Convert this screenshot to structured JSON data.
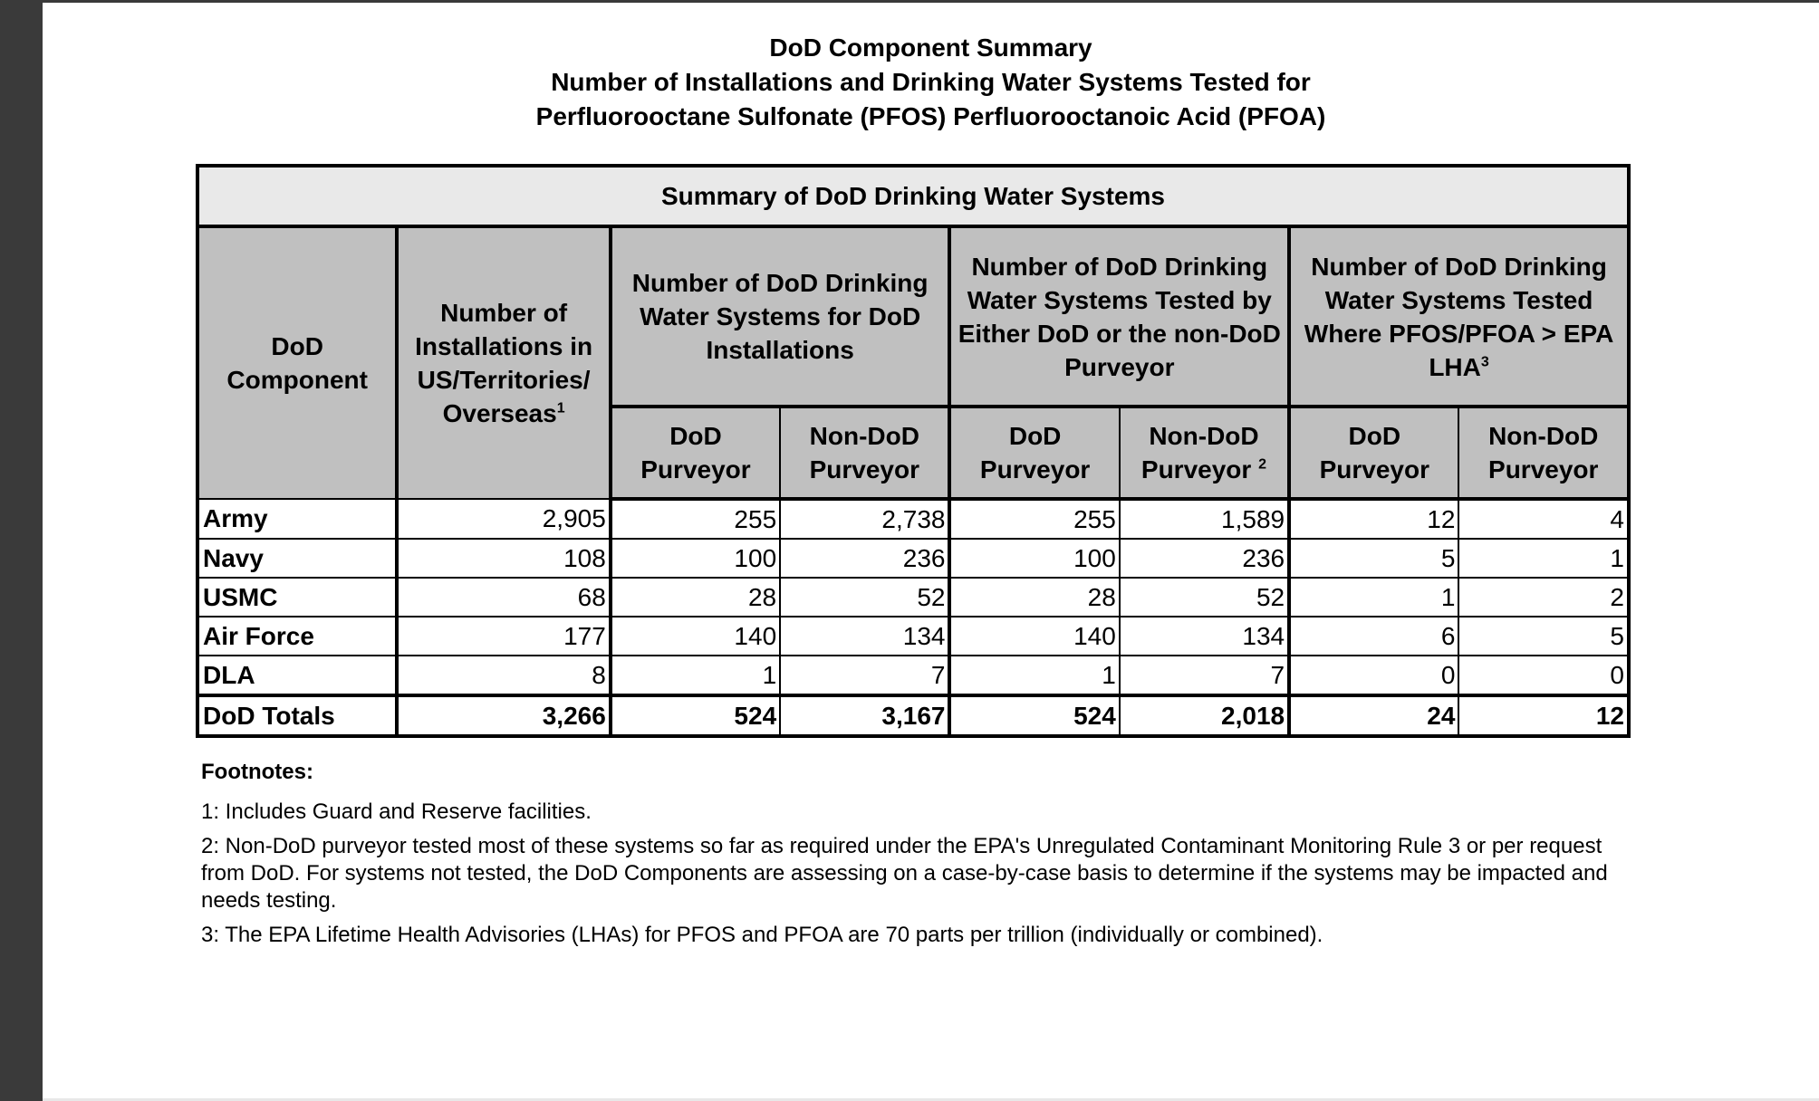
{
  "title": {
    "line1": "DoD Component Summary",
    "line2": "Number of Installations and Drinking Water Systems Tested for",
    "line3": "Perfluorooctane Sulfonate (PFOS) Perfluorooctanoic Acid (PFOA)"
  },
  "table": {
    "band": "Summary of DoD Drinking Water Systems",
    "headers": {
      "component": "DoD Component",
      "installations": "Number of Installations in US/Territories/ Overseas",
      "installations_sup": "1",
      "group_systems": "Number of DoD Drinking Water Systems for DoD Installations",
      "group_tested": "Number of DoD Drinking Water Systems Tested by Either DoD or the non-DoD Purveyor",
      "group_exceed": "Number of DoD Drinking Water Systems Tested Where PFOS/PFOA > EPA LHA",
      "group_exceed_sup": "3",
      "dod_purveyor": "DoD Purveyor",
      "nondod_purveyor": "Non-DoD Purveyor",
      "nondod_sup": "2"
    },
    "rows": [
      {
        "name": "Army",
        "values": [
          "2,905",
          "255",
          "2,738",
          "255",
          "1,589",
          "12",
          "4"
        ]
      },
      {
        "name": "Navy",
        "values": [
          "108",
          "100",
          "236",
          "100",
          "236",
          "5",
          "1"
        ]
      },
      {
        "name": "USMC",
        "values": [
          "68",
          "28",
          "52",
          "28",
          "52",
          "1",
          "2"
        ]
      },
      {
        "name": "Air Force",
        "values": [
          "177",
          "140",
          "134",
          "140",
          "134",
          "6",
          "5"
        ]
      },
      {
        "name": "DLA",
        "values": [
          "8",
          "1",
          "7",
          "1",
          "7",
          "0",
          "0"
        ]
      }
    ],
    "total": {
      "name": "DoD Totals",
      "values": [
        "3,266",
        "524",
        "3,167",
        "524",
        "2,018",
        "24",
        "12"
      ]
    }
  },
  "footnotes": {
    "heading": "Footnotes:",
    "items": [
      "1:  Includes Guard and Reserve facilities.",
      "2:  Non-DoD purveyor tested most of these systems so far as required under the EPA's Unregulated Contaminant Monitoring Rule 3 or per request from DoD.  For systems not tested, the DoD Components are assessing on a case-by-case basis to determine if the systems may be impacted and needs testing.",
      "3:  The EPA Lifetime Health Advisories (LHAs) for PFOS and PFOA are 70 parts per trillion (individually or combined)."
    ]
  }
}
